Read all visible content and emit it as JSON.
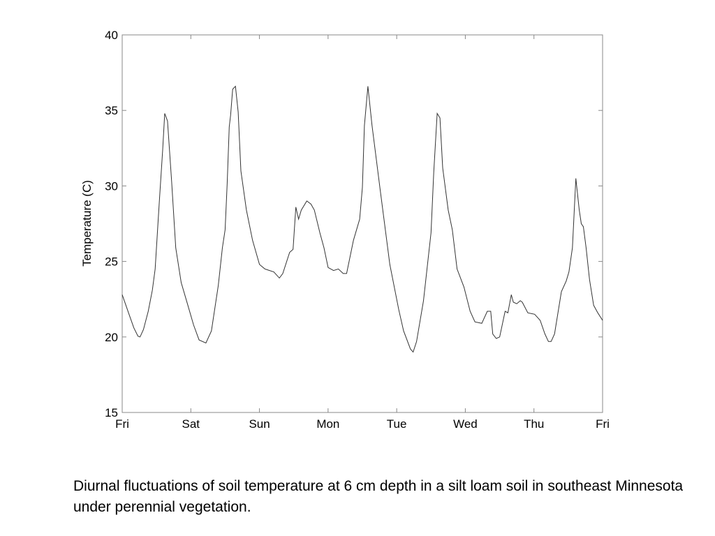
{
  "chart_data": {
    "type": "line",
    "title": "",
    "xlabel": "",
    "ylabel": "Temperature (C)",
    "xticks": [
      {
        "x": 0,
        "label": "Fri"
      },
      {
        "x": 1,
        "label": "Sat"
      },
      {
        "x": 2,
        "label": "Sun"
      },
      {
        "x": 3,
        "label": "Mon"
      },
      {
        "x": 4,
        "label": "Tue"
      },
      {
        "x": 5,
        "label": "Wed"
      },
      {
        "x": 6,
        "label": "Thu"
      },
      {
        "x": 7,
        "label": "Fri"
      }
    ],
    "yticks": [
      15,
      20,
      25,
      30,
      35,
      40
    ],
    "xlim": [
      0,
      7
    ],
    "ylim": [
      15,
      40
    ],
    "grid": false,
    "line_color": "#333333",
    "series": [
      {
        "x": [
          0,
          0.1,
          0.17,
          0.23,
          0.26,
          0.31,
          0.38,
          0.44,
          0.48,
          0.54,
          0.59,
          0.62,
          0.66,
          0.72,
          0.78,
          0.86,
          0.95,
          1.04,
          1.12,
          1.22,
          1.3,
          1.4,
          1.46,
          1.5,
          1.53,
          1.56,
          1.58,
          1.61,
          1.65,
          1.69,
          1.73,
          1.81,
          1.9,
          2.0,
          2.08,
          2.21,
          2.29,
          2.34,
          2.44,
          2.49,
          2.53,
          2.57,
          2.61,
          2.69,
          2.75,
          2.8,
          2.88,
          2.94,
          3.0,
          3.08,
          3.15,
          3.22,
          3.27,
          3.37,
          3.46,
          3.5,
          3.53,
          3.58,
          3.64,
          3.76,
          3.9,
          4.03,
          4.1,
          4.2,
          4.24,
          4.29,
          4.39,
          4.5,
          4.54,
          4.59,
          4.63,
          4.67,
          4.75,
          4.81,
          4.88,
          4.98,
          5.07,
          5.14,
          5.24,
          5.32,
          5.37,
          5.4,
          5.45,
          5.5,
          5.58,
          5.62,
          5.67,
          5.7,
          5.75,
          5.8,
          5.83,
          5.91,
          6.01,
          6.09,
          6.16,
          6.21,
          6.25,
          6.3,
          6.4,
          6.47,
          6.51,
          6.56,
          6.61,
          6.66,
          6.69,
          6.72,
          6.76,
          6.81,
          6.87,
          6.93,
          7.0
        ],
        "y": [
          22.8,
          21.5,
          20.6,
          20.05,
          20.0,
          20.5,
          21.7,
          23.1,
          24.5,
          28.9,
          32.4,
          34.8,
          34.3,
          30.3,
          25.9,
          23.6,
          22.2,
          20.8,
          19.8,
          19.6,
          20.4,
          23.4,
          25.9,
          27.1,
          30.2,
          33.9,
          34.7,
          36.4,
          36.6,
          34.9,
          31.0,
          28.4,
          26.4,
          24.8,
          24.5,
          24.3,
          23.9,
          24.2,
          25.6,
          25.8,
          28.6,
          27.8,
          28.4,
          29.0,
          28.8,
          28.4,
          26.9,
          25.9,
          24.6,
          24.4,
          24.5,
          24.2,
          24.2,
          26.4,
          27.8,
          29.9,
          34.0,
          36.6,
          34.0,
          29.7,
          24.8,
          21.8,
          20.4,
          19.2,
          19.0,
          19.7,
          22.4,
          26.9,
          30.9,
          34.8,
          34.5,
          31.2,
          28.4,
          27.1,
          24.5,
          23.3,
          21.7,
          21.0,
          20.9,
          21.7,
          21.7,
          20.2,
          19.9,
          20.0,
          21.7,
          21.6,
          22.8,
          22.3,
          22.2,
          22.4,
          22.3,
          21.6,
          21.5,
          21.1,
          20.2,
          19.7,
          19.7,
          20.2,
          23.0,
          23.7,
          24.3,
          25.9,
          30.5,
          28.4,
          27.5,
          27.3,
          25.9,
          23.8,
          22.1,
          21.6,
          21.1
        ]
      }
    ]
  },
  "caption": "Diurnal fluctuations of soil temperature at 6 cm depth in a silt loam soil in southeast Minnesota under perennial vegetation."
}
